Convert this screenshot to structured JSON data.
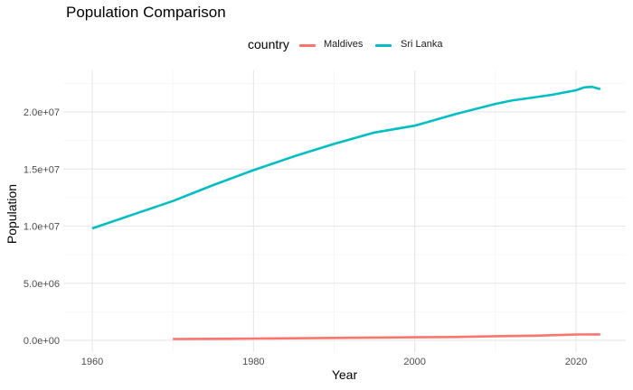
{
  "chart_data": {
    "type": "line",
    "title": "Population Comparison",
    "xlabel": "Year",
    "ylabel": "Population",
    "xlim": [
      1960,
      2023
    ],
    "ylim": [
      0,
      23000000
    ],
    "x_ticks": [
      1960,
      1980,
      2000,
      2020
    ],
    "x_tick_labels": [
      "1960",
      "1980",
      "2000",
      "2020"
    ],
    "y_ticks": [
      0,
      5000000,
      10000000,
      15000000,
      20000000
    ],
    "y_tick_labels": [
      "0.0e+00",
      "5.0e+06",
      "1.0e+07",
      "1.5e+07",
      "2.0e+07"
    ],
    "grid": true,
    "legend": {
      "title": "country",
      "position": "top"
    },
    "series": [
      {
        "name": "Maldives",
        "color": "#F8766D",
        "x": [
          1970,
          1975,
          1980,
          1985,
          1990,
          1995,
          2000,
          2005,
          2010,
          2015,
          2020,
          2023
        ],
        "values": [
          115000,
          135000,
          158000,
          185000,
          216000,
          245000,
          270000,
          295000,
          366000,
          410000,
          514000,
          521000
        ]
      },
      {
        "name": "Sri Lanka",
        "color": "#00BFC4",
        "x": [
          1960,
          1965,
          1970,
          1975,
          1980,
          1985,
          1990,
          1995,
          2000,
          2005,
          2010,
          2012,
          2015,
          2017,
          2020,
          2021,
          2022,
          2023
        ],
        "values": [
          9800000,
          11000000,
          12200000,
          13600000,
          14900000,
          16100000,
          17200000,
          18200000,
          18800000,
          19800000,
          20700000,
          21000000,
          21300000,
          21500000,
          21900000,
          22150000,
          22200000,
          22000000
        ]
      }
    ]
  }
}
